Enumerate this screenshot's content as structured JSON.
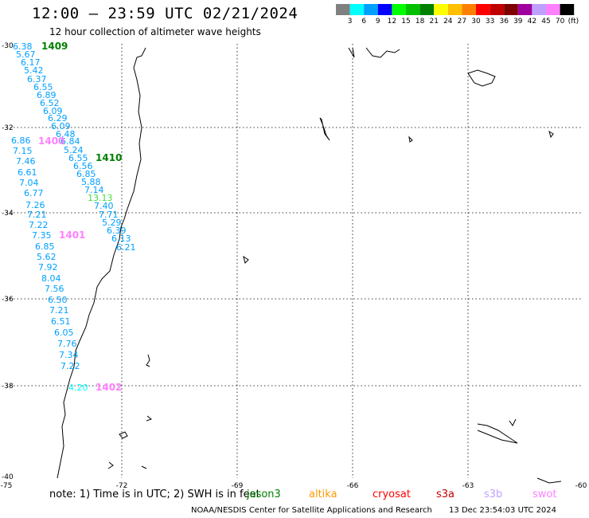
{
  "title": "12:00 – 23:59 UTC 02/21/2024",
  "subtitle": "12 hour collection of altimeter wave heights",
  "colorbar": {
    "colors": [
      "#808080",
      "#00ffff",
      "#00a0ff",
      "#0000ff",
      "#00ff00",
      "#00c000",
      "#008000",
      "#ffff00",
      "#ffc000",
      "#ff8000",
      "#ff0000",
      "#c00000",
      "#800000",
      "#a000a0",
      "#c0a0ff",
      "#ff80ff",
      "#000000"
    ],
    "labels": [
      "3",
      "6",
      "9",
      "12",
      "15",
      "18",
      "21",
      "24",
      "27",
      "30",
      "33",
      "36",
      "39",
      "42",
      "45",
      "70"
    ],
    "unit": "(ft)"
  },
  "axes": {
    "lat_labels": [
      "-30",
      "-32",
      "-34",
      "-36",
      "-38",
      "-40"
    ],
    "lon_labels": [
      "-75",
      "-72",
      "-69",
      "-66",
      "-63",
      "-60"
    ]
  },
  "wave_labels": [
    {
      "v": "6.38",
      "c": "#00a0ff"
    },
    {
      "v": "5.67",
      "c": "#00a0ff"
    },
    {
      "v": "6.17",
      "c": "#00a0ff"
    },
    {
      "v": "5.42",
      "c": "#00a0ff"
    },
    {
      "v": "6.37",
      "c": "#00a0ff"
    },
    {
      "v": "6.55",
      "c": "#00a0ff"
    },
    {
      "v": "6.89",
      "c": "#00a0ff"
    },
    {
      "v": "6.52",
      "c": "#00a0ff"
    },
    {
      "v": "6.09",
      "c": "#00a0ff"
    },
    {
      "v": "6.29",
      "c": "#00a0ff"
    },
    {
      "v": "6.09",
      "c": "#00a0ff"
    },
    {
      "v": "6.48",
      "c": "#00a0ff"
    },
    {
      "v": "6.86",
      "c": "#00a0ff"
    },
    {
      "v": "6.84",
      "c": "#00a0ff"
    },
    {
      "v": "7.15",
      "c": "#00a0ff"
    },
    {
      "v": "5.24",
      "c": "#00a0ff"
    },
    {
      "v": "7.46",
      "c": "#00a0ff"
    },
    {
      "v": "6.55",
      "c": "#00a0ff"
    },
    {
      "v": "6.56",
      "c": "#00a0ff"
    },
    {
      "v": "6.61",
      "c": "#00a0ff"
    },
    {
      "v": "6.85",
      "c": "#00a0ff"
    },
    {
      "v": "7.04",
      "c": "#00a0ff"
    },
    {
      "v": "5.88",
      "c": "#00a0ff"
    },
    {
      "v": "6.77",
      "c": "#00a0ff"
    },
    {
      "v": "7.14",
      "c": "#00a0ff"
    },
    {
      "v": "13.13",
      "c": "#40e040"
    },
    {
      "v": "7.26",
      "c": "#00a0ff"
    },
    {
      "v": "7.40",
      "c": "#00a0ff"
    },
    {
      "v": "7.21",
      "c": "#00a0ff"
    },
    {
      "v": "7.71",
      "c": "#00a0ff"
    },
    {
      "v": "5.29",
      "c": "#00a0ff"
    },
    {
      "v": "7.22",
      "c": "#00a0ff"
    },
    {
      "v": "6.39",
      "c": "#00a0ff"
    },
    {
      "v": "7.35",
      "c": "#00a0ff"
    },
    {
      "v": "6.13",
      "c": "#00a0ff"
    },
    {
      "v": "6.21",
      "c": "#00a0ff"
    },
    {
      "v": "6.85",
      "c": "#00a0ff"
    },
    {
      "v": "5.62",
      "c": "#00a0ff"
    },
    {
      "v": "7.92",
      "c": "#00a0ff"
    },
    {
      "v": "8.04",
      "c": "#00a0ff"
    },
    {
      "v": "7.56",
      "c": "#00a0ff"
    },
    {
      "v": "6.50",
      "c": "#00a0ff"
    },
    {
      "v": "7.21",
      "c": "#00a0ff"
    },
    {
      "v": "6.51",
      "c": "#00a0ff"
    },
    {
      "v": "6.05",
      "c": "#00a0ff"
    },
    {
      "v": "7.76",
      "c": "#00a0ff"
    },
    {
      "v": "7.34",
      "c": "#00a0ff"
    },
    {
      "v": "7.22",
      "c": "#00a0ff"
    },
    {
      "v": "4.20",
      "c": "#00ffff"
    }
  ],
  "pass_labels": [
    {
      "v": "1409",
      "c": "#008000"
    },
    {
      "v": "1400",
      "c": "#ff80ff"
    },
    {
      "v": "1410",
      "c": "#008000"
    },
    {
      "v": "1401",
      "c": "#ff80ff"
    },
    {
      "v": "1402",
      "c": "#ff80ff"
    }
  ],
  "note": "note:  1) Time is in UTC;  2) SWH is in feet",
  "satellites": [
    {
      "name": "jason3",
      "color": "#008000"
    },
    {
      "name": "altika",
      "color": "#ff9900"
    },
    {
      "name": "cryosat",
      "color": "#ff0000"
    },
    {
      "name": "s3a",
      "color": "#c00000"
    },
    {
      "name": "s3b",
      "color": "#c0a0ff"
    },
    {
      "name": "swot",
      "color": "#ff80ff"
    }
  ],
  "footer": {
    "credit": "NOAA/NESDIS Center for Satellite Applications and Research",
    "timestamp": "13 Dec 23:54:03 UTC 2024"
  }
}
